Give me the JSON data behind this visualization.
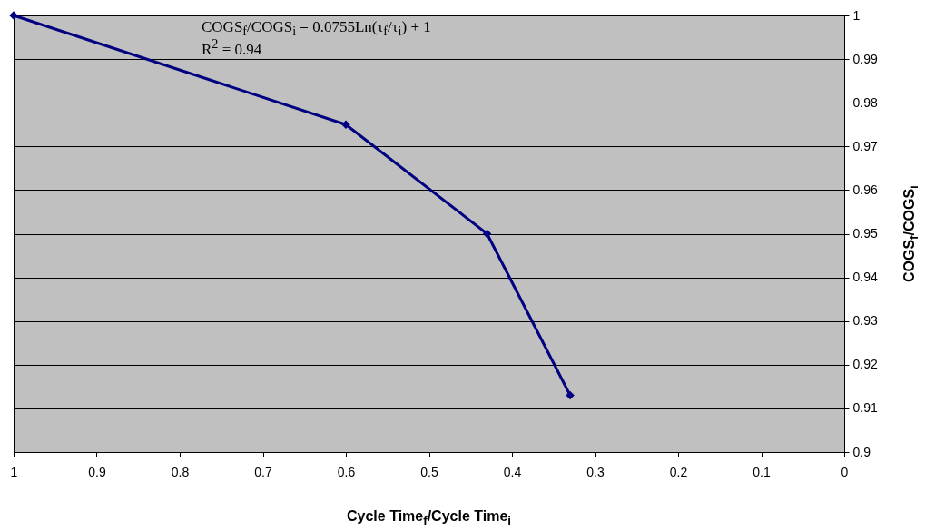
{
  "chart_data": {
    "type": "line",
    "xlabel": "Cycle Time$_{f}$/Cycle Time$_{i}$",
    "ylabel": "COGS$_{f}$/COGS$_{i}$",
    "x": [
      1,
      0.6,
      0.43,
      0.33
    ],
    "series": [
      {
        "color": "#000080",
        "values": [
          1,
          0.975,
          0.95,
          0.913
        ]
      }
    ],
    "xlim": [
      1,
      0
    ],
    "xticks": [
      1,
      0.9,
      0.8,
      0.7,
      0.6,
      0.5,
      0.4,
      0.3,
      0.2,
      0.1,
      0
    ],
    "ylim": [
      0.9,
      1
    ],
    "yticks": [
      0.9,
      0.91,
      0.92,
      0.93,
      0.94,
      0.95,
      0.96,
      0.97,
      0.98,
      0.99,
      1
    ],
    "grid": "y",
    "marker": "diamond",
    "line_style": "solid",
    "annotations": [
      "COGS$_{f}$/COGS$_{i}$ = 0.0755Ln(τ$_{f}$/τ$_{i}$) + 1",
      "R$^{2}$ = 0.94"
    ]
  }
}
